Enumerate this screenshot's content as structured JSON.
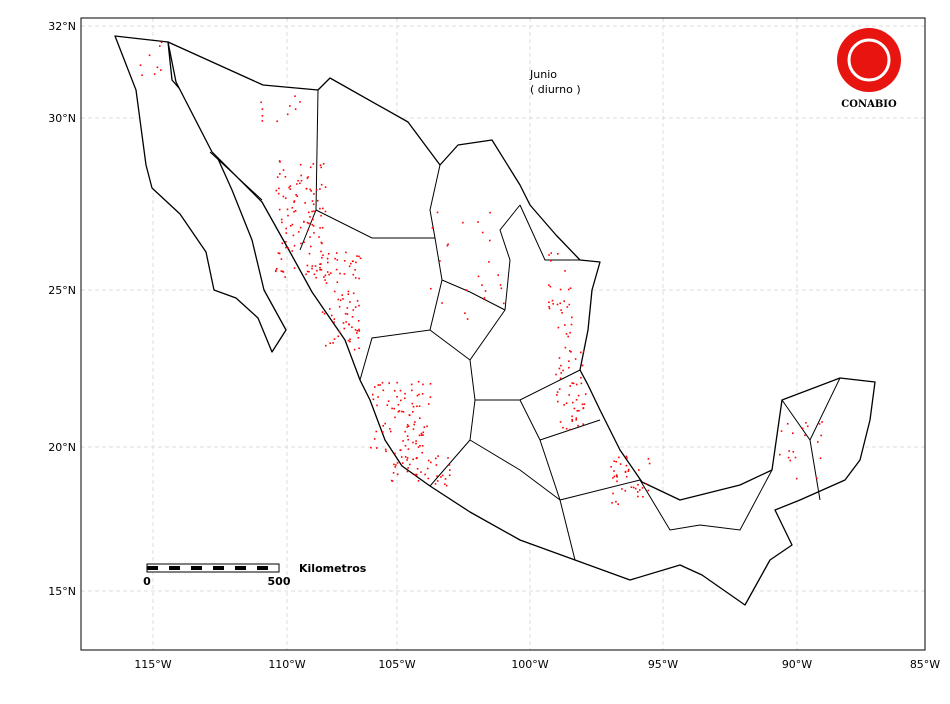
{
  "map": {
    "period": "Junio",
    "subtitle": "( diurno )",
    "logo_text": "CONABIO",
    "scale_bar": {
      "unit": "Kilometros",
      "start": "0",
      "end": "500"
    },
    "lon_labels": [
      "115°W",
      "110°W",
      "105°W",
      "100°W",
      "95°W",
      "90°W",
      "85°W"
    ],
    "lat_labels": [
      "32°N",
      "30°N",
      "25°N",
      "20°N",
      "15°N"
    ]
  }
}
